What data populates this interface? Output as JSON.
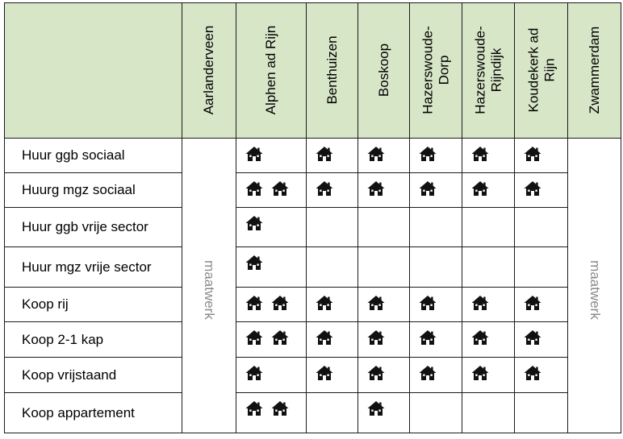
{
  "columns": [
    "Aarlanderveen",
    "Alphen ad Rijn",
    "Benthuizen",
    "Boskoop",
    "Hazerswoude-\nDorp",
    "Hazerswoude-\nRijndijk",
    "Koudekerk ad\nRijn",
    "Zwammerdam"
  ],
  "rows": [
    {
      "label": "Huur ggb sociaal",
      "counts": [
        0,
        1,
        1,
        1,
        1,
        1,
        1,
        0
      ]
    },
    {
      "label": "Huurg mgz sociaal",
      "counts": [
        0,
        2,
        1,
        1,
        1,
        1,
        1,
        0
      ]
    },
    {
      "label": "Huur ggb vrije sector",
      "counts": [
        0,
        1,
        0,
        0,
        0,
        0,
        0,
        0
      ]
    },
    {
      "label": "Huur mgz vrije sector",
      "counts": [
        0,
        1,
        0,
        0,
        0,
        0,
        0,
        0
      ]
    },
    {
      "label": "Koop rij",
      "counts": [
        0,
        2,
        1,
        1,
        1,
        1,
        1,
        0
      ]
    },
    {
      "label": "Koop 2-1 kap",
      "counts": [
        0,
        2,
        1,
        1,
        1,
        1,
        1,
        0
      ]
    },
    {
      "label": "Koop vrijstaand",
      "counts": [
        0,
        1,
        1,
        1,
        1,
        1,
        1,
        0
      ]
    },
    {
      "label": "Koop appartement",
      "counts": [
        0,
        2,
        0,
        1,
        0,
        0,
        0,
        0
      ]
    }
  ],
  "maatwerk_label": "maatwerk",
  "icon": "house-icon",
  "colors": {
    "header_bg": "#d8e6c8",
    "border": "#1a1a1a",
    "maatwerk_text": "#8a8a8a"
  }
}
